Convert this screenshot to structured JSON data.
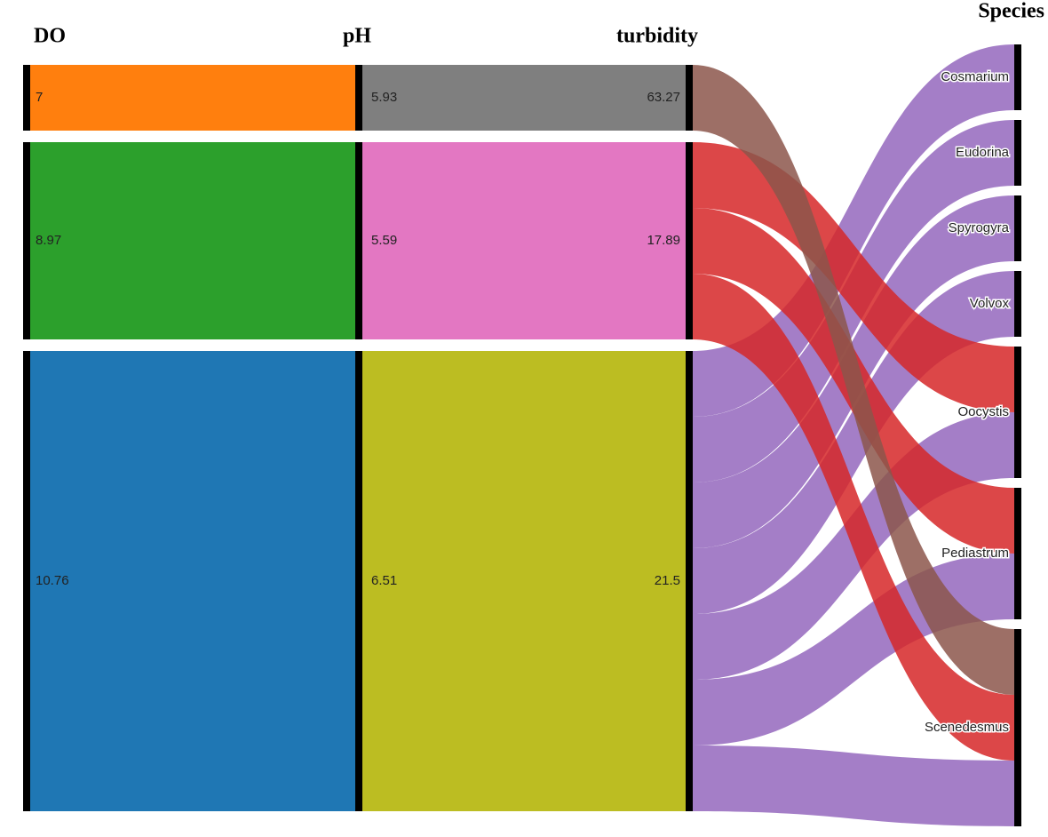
{
  "chart_data": {
    "type": "sankey",
    "dimensions": [
      "DO",
      "pH",
      "turbidity",
      "Species"
    ],
    "groups": [
      {
        "labels": [
          "7",
          "5.93",
          "63.27"
        ],
        "colors": [
          "#ff7f0e",
          "#7f7f7f",
          "#8c564b"
        ]
      },
      {
        "labels": [
          "8.97",
          "5.59",
          "17.89"
        ],
        "colors": [
          "#2ca02c",
          "#e377c2",
          "#d62728"
        ]
      },
      {
        "labels": [
          "10.76",
          "6.51",
          "21.5"
        ],
        "colors": [
          "#1f77b4",
          "#bcbd22",
          "#9467bd"
        ]
      }
    ],
    "species": [
      "Cosmarium",
      "Eudorina",
      "Spyrogyra",
      "Volvox",
      "Oocystis",
      "Pediastrum",
      "Scenedesmus"
    ],
    "links": [
      {
        "source": 0,
        "target": 6,
        "value": 1
      },
      {
        "source": 1,
        "target": 4,
        "value": 1
      },
      {
        "source": 1,
        "target": 5,
        "value": 1
      },
      {
        "source": 1,
        "target": 6,
        "value": 1
      },
      {
        "source": 2,
        "target": 0,
        "value": 1
      },
      {
        "source": 2,
        "target": 1,
        "value": 1
      },
      {
        "source": 2,
        "target": 2,
        "value": 1
      },
      {
        "source": 2,
        "target": 3,
        "value": 1
      },
      {
        "source": 2,
        "target": 4,
        "value": 1
      },
      {
        "source": 2,
        "target": 5,
        "value": 1
      },
      {
        "source": 2,
        "target": 6,
        "value": 1
      }
    ]
  }
}
